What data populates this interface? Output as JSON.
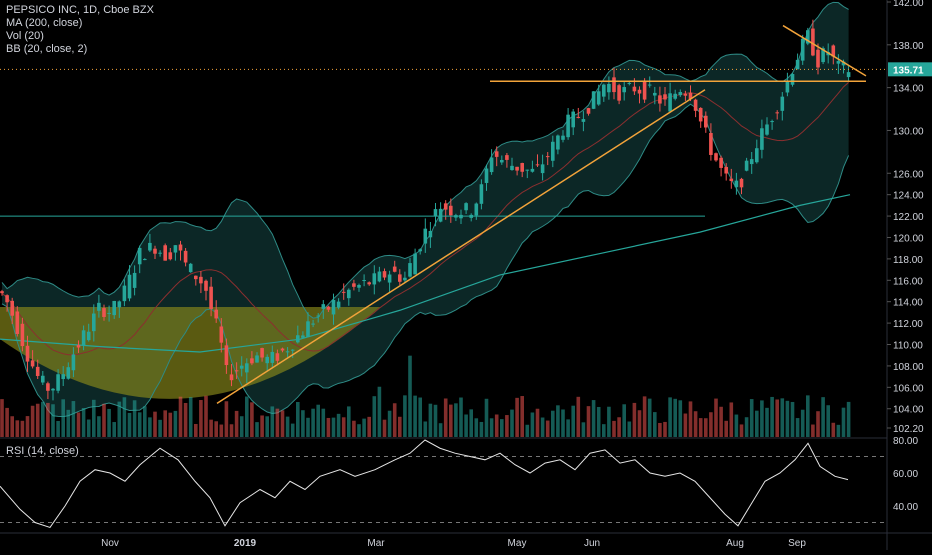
{
  "legend": {
    "title": "PEPSICO INC, 1D, Cboe BZX",
    "ma": "MA (200, close)",
    "vol": "Vol (20)",
    "bb": "BB (20, close, 2)",
    "rsi": "RSI (14, close)"
  },
  "chart_data": {
    "type": "candlestick",
    "title": "PEPSICO INC, 1D, Cboe BZX",
    "price_axis": {
      "ticks": [
        "142.00",
        "138.00",
        "134.00",
        "130.00",
        "126.00",
        "124.00",
        "122.00",
        "120.00",
        "118.00",
        "116.00",
        "114.00",
        "112.00",
        "110.00",
        "108.00",
        "106.00",
        "104.00",
        "102.20"
      ],
      "ylim": [
        101.9,
        142.3
      ],
      "last_price": "135.71"
    },
    "rsi_axis": {
      "ticks": [
        "80.00",
        "60.00",
        "40.00"
      ],
      "ylim": [
        24,
        84
      ],
      "levels": [
        70,
        30
      ]
    },
    "x_ticks": [
      "Nov",
      "2019",
      "Mar",
      "May",
      "Jun",
      "Aug",
      "Sep"
    ],
    "price_path": [
      [
        0,
        115.0
      ],
      [
        8,
        113.8
      ],
      [
        18,
        111.5
      ],
      [
        28,
        109.0
      ],
      [
        40,
        106.5
      ],
      [
        50,
        105.8
      ],
      [
        60,
        106.8
      ],
      [
        72,
        109.0
      ],
      [
        85,
        111.0
      ],
      [
        100,
        113.5
      ],
      [
        112,
        113.0
      ],
      [
        125,
        115.0
      ],
      [
        140,
        118.5
      ],
      [
        155,
        119.2
      ],
      [
        168,
        118.2
      ],
      [
        175,
        119.5
      ],
      [
        185,
        117.5
      ],
      [
        195,
        116.5
      ],
      [
        205,
        115.5
      ],
      [
        212,
        113.0
      ],
      [
        220,
        110.5
      ],
      [
        227,
        107.0
      ],
      [
        240,
        108.0
      ],
      [
        255,
        109.0
      ],
      [
        270,
        108.5
      ],
      [
        285,
        109.5
      ],
      [
        300,
        111.0
      ],
      [
        315,
        112.5
      ],
      [
        330,
        113.5
      ],
      [
        345,
        114.8
      ],
      [
        360,
        115.5
      ],
      [
        375,
        116.0
      ],
      [
        390,
        116.8
      ],
      [
        405,
        116.2
      ],
      [
        415,
        118.5
      ],
      [
        425,
        120.5
      ],
      [
        440,
        123.0
      ],
      [
        455,
        122.5
      ],
      [
        470,
        122.5
      ],
      [
        480,
        124.0
      ],
      [
        492,
        128.0
      ],
      [
        505,
        127.0
      ],
      [
        520,
        126.5
      ],
      [
        535,
        126.0
      ],
      [
        550,
        128.0
      ],
      [
        565,
        130.5
      ],
      [
        580,
        131.5
      ],
      [
        595,
        133.0
      ],
      [
        605,
        134.5
      ],
      [
        620,
        133.5
      ],
      [
        635,
        134.0
      ],
      [
        650,
        133.5
      ],
      [
        665,
        132.5
      ],
      [
        680,
        134.0
      ],
      [
        692,
        133.5
      ],
      [
        700,
        131.0
      ],
      [
        712,
        128.0
      ],
      [
        725,
        125.5
      ],
      [
        735,
        124.5
      ],
      [
        745,
        126.0
      ],
      [
        755,
        128.5
      ],
      [
        770,
        131.0
      ],
      [
        785,
        134.0
      ],
      [
        795,
        136.5
      ],
      [
        808,
        138.8
      ],
      [
        818,
        136.5
      ],
      [
        828,
        137.5
      ],
      [
        838,
        135.8
      ],
      [
        848,
        135.7
      ]
    ],
    "ma200_path": [
      [
        0,
        110.5
      ],
      [
        100,
        109.8
      ],
      [
        200,
        109.3
      ],
      [
        300,
        110.5
      ],
      [
        400,
        113.2
      ],
      [
        500,
        116.5
      ],
      [
        600,
        118.5
      ],
      [
        700,
        120.5
      ],
      [
        800,
        123.0
      ],
      [
        850,
        124.0
      ]
    ],
    "rsi_path": [
      [
        0,
        52
      ],
      [
        20,
        38
      ],
      [
        35,
        30
      ],
      [
        50,
        27
      ],
      [
        65,
        40
      ],
      [
        80,
        55
      ],
      [
        95,
        62
      ],
      [
        110,
        60
      ],
      [
        125,
        55
      ],
      [
        140,
        65
      ],
      [
        160,
        75
      ],
      [
        178,
        68
      ],
      [
        195,
        55
      ],
      [
        210,
        45
      ],
      [
        225,
        28
      ],
      [
        240,
        42
      ],
      [
        260,
        50
      ],
      [
        275,
        45
      ],
      [
        290,
        55
      ],
      [
        305,
        50
      ],
      [
        320,
        58
      ],
      [
        340,
        62
      ],
      [
        355,
        58
      ],
      [
        375,
        62
      ],
      [
        395,
        68
      ],
      [
        410,
        72
      ],
      [
        425,
        80
      ],
      [
        440,
        75
      ],
      [
        455,
        72
      ],
      [
        470,
        70
      ],
      [
        485,
        68
      ],
      [
        500,
        72
      ],
      [
        515,
        65
      ],
      [
        530,
        60
      ],
      [
        545,
        66
      ],
      [
        560,
        68
      ],
      [
        575,
        62
      ],
      [
        590,
        72
      ],
      [
        605,
        74
      ],
      [
        620,
        66
      ],
      [
        635,
        68
      ],
      [
        650,
        60
      ],
      [
        665,
        58
      ],
      [
        680,
        60
      ],
      [
        695,
        55
      ],
      [
        710,
        45
      ],
      [
        725,
        35
      ],
      [
        738,
        28
      ],
      [
        750,
        40
      ],
      [
        765,
        55
      ],
      [
        780,
        60
      ],
      [
        795,
        68
      ],
      [
        808,
        78
      ],
      [
        820,
        64
      ],
      [
        835,
        58
      ],
      [
        848,
        56
      ]
    ],
    "drawings": {
      "resistance_level": 134.6,
      "horizontal_level": 122.0,
      "trendline": [
        [
          217,
          104.5
        ],
        [
          705,
          133.8
        ]
      ],
      "wedge": [
        [
          783,
          139.8
        ],
        [
          866,
          135.1
        ]
      ]
    }
  },
  "colors": {
    "up": "#26a69a",
    "down": "#ef5350",
    "bb_line": "#2e8b86",
    "bb_fill": "#0d2b2a",
    "ma": "#26a69a",
    "basis": "#8b2f2f",
    "drawing": "#f2a33a",
    "bowl": "#8a8a1a",
    "axis_text": "#d1d4dc",
    "price_tag": "#26a69a"
  }
}
